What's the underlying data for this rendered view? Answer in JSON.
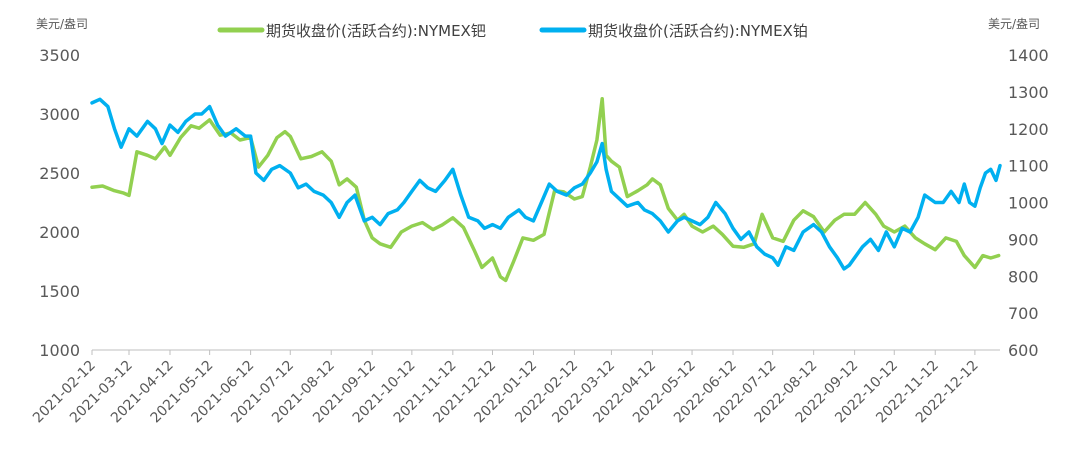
{
  "chart_data": {
    "type": "line",
    "left_axis_unit": "美元/盎司",
    "right_axis_unit": "美元/盎司",
    "y_left": {
      "min": 1000,
      "max": 3500,
      "ticks": [
        1000,
        1500,
        2000,
        2500,
        3000,
        3500
      ]
    },
    "y_right": {
      "min": 600,
      "max": 1400,
      "ticks": [
        600,
        700,
        800,
        900,
        1000,
        1100,
        1200,
        1300,
        1400
      ]
    },
    "x_categories": [
      "2021-02-12",
      "2021-03-12",
      "2021-04-12",
      "2021-05-12",
      "2021-06-12",
      "2021-07-12",
      "2021-08-12",
      "2021-09-12",
      "2021-10-12",
      "2021-11-12",
      "2021-12-12",
      "2022-01-12",
      "2022-02-12",
      "2022-03-12",
      "2022-04-12",
      "2022-05-12",
      "2022-06-12",
      "2022-07-12",
      "2022-08-12",
      "2022-09-12",
      "2022-10-12",
      "2022-11-12",
      "2022-12-12"
    ],
    "legend_position": "top",
    "series": [
      {
        "name": "期货收盘价(活跃合约):NYMEX钯",
        "axis": "left",
        "color": "#92D050",
        "points": [
          [
            "2021-02-12",
            2380
          ],
          [
            "2021-02-20",
            2390
          ],
          [
            "2021-03-01",
            2350
          ],
          [
            "2021-03-08",
            2330
          ],
          [
            "2021-03-12",
            2310
          ],
          [
            "2021-03-18",
            2680
          ],
          [
            "2021-03-26",
            2650
          ],
          [
            "2021-04-01",
            2620
          ],
          [
            "2021-04-08",
            2720
          ],
          [
            "2021-04-12",
            2650
          ],
          [
            "2021-04-20",
            2800
          ],
          [
            "2021-04-28",
            2900
          ],
          [
            "2021-05-04",
            2880
          ],
          [
            "2021-05-12",
            2950
          ],
          [
            "2021-05-20",
            2820
          ],
          [
            "2021-05-28",
            2840
          ],
          [
            "2021-06-04",
            2780
          ],
          [
            "2021-06-12",
            2800
          ],
          [
            "2021-06-18",
            2550
          ],
          [
            "2021-06-25",
            2650
          ],
          [
            "2021-07-02",
            2800
          ],
          [
            "2021-07-08",
            2850
          ],
          [
            "2021-07-12",
            2810
          ],
          [
            "2021-07-20",
            2620
          ],
          [
            "2021-07-28",
            2640
          ],
          [
            "2021-08-05",
            2680
          ],
          [
            "2021-08-12",
            2600
          ],
          [
            "2021-08-18",
            2400
          ],
          [
            "2021-08-24",
            2450
          ],
          [
            "2021-08-31",
            2380
          ],
          [
            "2021-09-06",
            2100
          ],
          [
            "2021-09-12",
            1950
          ],
          [
            "2021-09-18",
            1900
          ],
          [
            "2021-09-26",
            1870
          ],
          [
            "2021-10-04",
            2000
          ],
          [
            "2021-10-12",
            2050
          ],
          [
            "2021-10-20",
            2080
          ],
          [
            "2021-10-28",
            2020
          ],
          [
            "2021-11-04",
            2060
          ],
          [
            "2021-11-12",
            2120
          ],
          [
            "2021-11-20",
            2040
          ],
          [
            "2021-11-28",
            1850
          ],
          [
            "2021-12-04",
            1700
          ],
          [
            "2021-12-12",
            1780
          ],
          [
            "2021-12-18",
            1620
          ],
          [
            "2021-12-22",
            1590
          ],
          [
            "2021-12-28",
            1750
          ],
          [
            "2022-01-04",
            1950
          ],
          [
            "2022-01-12",
            1930
          ],
          [
            "2022-01-20",
            1980
          ],
          [
            "2022-01-28",
            2350
          ],
          [
            "2022-02-04",
            2340
          ],
          [
            "2022-02-12",
            2280
          ],
          [
            "2022-02-18",
            2300
          ],
          [
            "2022-02-24",
            2550
          ],
          [
            "2022-03-01",
            2780
          ],
          [
            "2022-03-05",
            3130
          ],
          [
            "2022-03-08",
            2650
          ],
          [
            "2022-03-12",
            2600
          ],
          [
            "2022-03-18",
            2550
          ],
          [
            "2022-03-24",
            2300
          ],
          [
            "2022-04-01",
            2350
          ],
          [
            "2022-04-08",
            2400
          ],
          [
            "2022-04-12",
            2450
          ],
          [
            "2022-04-18",
            2400
          ],
          [
            "2022-04-24",
            2200
          ],
          [
            "2022-05-01",
            2100
          ],
          [
            "2022-05-06",
            2150
          ],
          [
            "2022-05-12",
            2050
          ],
          [
            "2022-05-20",
            2000
          ],
          [
            "2022-05-28",
            2050
          ],
          [
            "2022-06-04",
            1980
          ],
          [
            "2022-06-12",
            1880
          ],
          [
            "2022-06-20",
            1870
          ],
          [
            "2022-06-28",
            1900
          ],
          [
            "2022-07-04",
            2150
          ],
          [
            "2022-07-12",
            1950
          ],
          [
            "2022-07-20",
            1920
          ],
          [
            "2022-07-28",
            2100
          ],
          [
            "2022-08-04",
            2180
          ],
          [
            "2022-08-12",
            2130
          ],
          [
            "2022-08-20",
            2000
          ],
          [
            "2022-08-28",
            2100
          ],
          [
            "2022-09-04",
            2150
          ],
          [
            "2022-09-12",
            2150
          ],
          [
            "2022-09-20",
            2250
          ],
          [
            "2022-09-28",
            2150
          ],
          [
            "2022-10-04",
            2050
          ],
          [
            "2022-10-12",
            2000
          ],
          [
            "2022-10-20",
            2050
          ],
          [
            "2022-10-28",
            1950
          ],
          [
            "2022-11-04",
            1900
          ],
          [
            "2022-11-12",
            1850
          ],
          [
            "2022-11-20",
            1950
          ],
          [
            "2022-11-28",
            1920
          ],
          [
            "2022-12-04",
            1800
          ],
          [
            "2022-12-12",
            1700
          ],
          [
            "2022-12-18",
            1800
          ],
          [
            "2022-12-24",
            1780
          ],
          [
            "2022-12-30",
            1800
          ]
        ]
      },
      {
        "name": "期货收盘价(活跃合约):NYMEX铂",
        "axis": "right",
        "color": "#00B0F0",
        "points": [
          [
            "2021-02-12",
            1270
          ],
          [
            "2021-02-18",
            1280
          ],
          [
            "2021-02-24",
            1260
          ],
          [
            "2021-03-01",
            1200
          ],
          [
            "2021-03-06",
            1150
          ],
          [
            "2021-03-12",
            1200
          ],
          [
            "2021-03-18",
            1180
          ],
          [
            "2021-03-26",
            1220
          ],
          [
            "2021-04-01",
            1200
          ],
          [
            "2021-04-06",
            1160
          ],
          [
            "2021-04-12",
            1210
          ],
          [
            "2021-04-18",
            1190
          ],
          [
            "2021-04-24",
            1220
          ],
          [
            "2021-05-01",
            1240
          ],
          [
            "2021-05-06",
            1240
          ],
          [
            "2021-05-12",
            1260
          ],
          [
            "2021-05-18",
            1210
          ],
          [
            "2021-05-24",
            1180
          ],
          [
            "2021-06-01",
            1200
          ],
          [
            "2021-06-08",
            1180
          ],
          [
            "2021-06-12",
            1180
          ],
          [
            "2021-06-16",
            1080
          ],
          [
            "2021-06-22",
            1060
          ],
          [
            "2021-06-28",
            1090
          ],
          [
            "2021-07-04",
            1100
          ],
          [
            "2021-07-12",
            1080
          ],
          [
            "2021-07-18",
            1040
          ],
          [
            "2021-07-24",
            1050
          ],
          [
            "2021-07-30",
            1030
          ],
          [
            "2021-08-06",
            1020
          ],
          [
            "2021-08-12",
            1000
          ],
          [
            "2021-08-18",
            960
          ],
          [
            "2021-08-24",
            1000
          ],
          [
            "2021-08-30",
            1020
          ],
          [
            "2021-09-06",
            950
          ],
          [
            "2021-09-12",
            960
          ],
          [
            "2021-09-18",
            940
          ],
          [
            "2021-09-24",
            970
          ],
          [
            "2021-10-01",
            980
          ],
          [
            "2021-10-06",
            1000
          ],
          [
            "2021-10-12",
            1030
          ],
          [
            "2021-10-18",
            1060
          ],
          [
            "2021-10-24",
            1040
          ],
          [
            "2021-10-30",
            1030
          ],
          [
            "2021-11-06",
            1060
          ],
          [
            "2021-11-12",
            1090
          ],
          [
            "2021-11-18",
            1020
          ],
          [
            "2021-11-24",
            960
          ],
          [
            "2021-12-01",
            950
          ],
          [
            "2021-12-06",
            930
          ],
          [
            "2021-12-12",
            940
          ],
          [
            "2021-12-18",
            930
          ],
          [
            "2021-12-24",
            960
          ],
          [
            "2022-01-01",
            980
          ],
          [
            "2022-01-06",
            960
          ],
          [
            "2022-01-12",
            950
          ],
          [
            "2022-01-18",
            1000
          ],
          [
            "2022-01-24",
            1050
          ],
          [
            "2022-01-30",
            1030
          ],
          [
            "2022-02-06",
            1020
          ],
          [
            "2022-02-12",
            1040
          ],
          [
            "2022-02-18",
            1050
          ],
          [
            "2022-02-24",
            1080
          ],
          [
            "2022-03-01",
            1110
          ],
          [
            "2022-03-05",
            1160
          ],
          [
            "2022-03-08",
            1090
          ],
          [
            "2022-03-12",
            1030
          ],
          [
            "2022-03-18",
            1010
          ],
          [
            "2022-03-24",
            990
          ],
          [
            "2022-04-01",
            1000
          ],
          [
            "2022-04-06",
            980
          ],
          [
            "2022-04-12",
            970
          ],
          [
            "2022-04-18",
            950
          ],
          [
            "2022-04-24",
            920
          ],
          [
            "2022-05-01",
            950
          ],
          [
            "2022-05-06",
            960
          ],
          [
            "2022-05-12",
            950
          ],
          [
            "2022-05-18",
            940
          ],
          [
            "2022-05-24",
            960
          ],
          [
            "2022-05-30",
            1000
          ],
          [
            "2022-06-06",
            970
          ],
          [
            "2022-06-12",
            930
          ],
          [
            "2022-06-18",
            900
          ],
          [
            "2022-06-24",
            920
          ],
          [
            "2022-06-30",
            880
          ],
          [
            "2022-07-06",
            860
          ],
          [
            "2022-07-12",
            850
          ],
          [
            "2022-07-16",
            830
          ],
          [
            "2022-07-22",
            880
          ],
          [
            "2022-07-28",
            870
          ],
          [
            "2022-08-04",
            920
          ],
          [
            "2022-08-12",
            940
          ],
          [
            "2022-08-18",
            920
          ],
          [
            "2022-08-24",
            880
          ],
          [
            "2022-08-30",
            850
          ],
          [
            "2022-09-04",
            820
          ],
          [
            "2022-09-08",
            830
          ],
          [
            "2022-09-12",
            850
          ],
          [
            "2022-09-18",
            880
          ],
          [
            "2022-09-24",
            900
          ],
          [
            "2022-09-30",
            870
          ],
          [
            "2022-10-06",
            920
          ],
          [
            "2022-10-12",
            880
          ],
          [
            "2022-10-18",
            930
          ],
          [
            "2022-10-24",
            920
          ],
          [
            "2022-10-30",
            960
          ],
          [
            "2022-11-04",
            1020
          ],
          [
            "2022-11-12",
            1000
          ],
          [
            "2022-11-18",
            1000
          ],
          [
            "2022-11-24",
            1030
          ],
          [
            "2022-11-30",
            1000
          ],
          [
            "2022-12-04",
            1050
          ],
          [
            "2022-12-08",
            1000
          ],
          [
            "2022-12-12",
            990
          ],
          [
            "2022-12-16",
            1040
          ],
          [
            "2022-12-20",
            1080
          ],
          [
            "2022-12-24",
            1090
          ],
          [
            "2022-12-28",
            1060
          ],
          [
            "2022-12-31",
            1100
          ]
        ]
      }
    ]
  }
}
